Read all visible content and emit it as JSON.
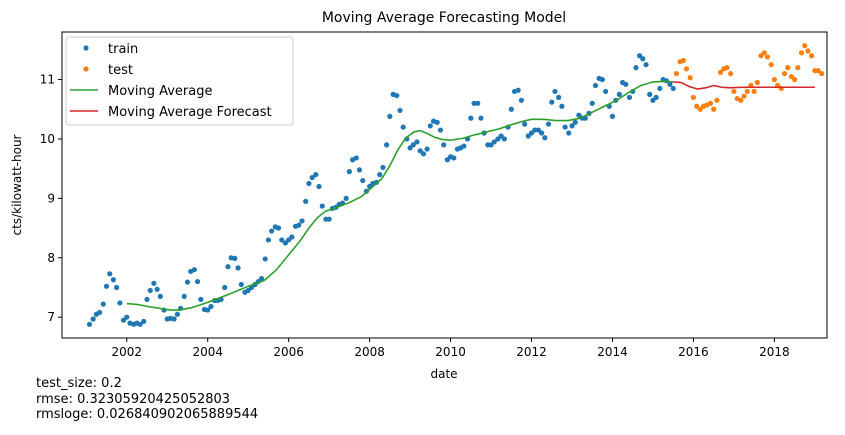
{
  "chart_data": {
    "type": "scatter",
    "title": "Moving Average Forecasting Model",
    "xlabel": "date",
    "ylabel": "cts/kilowatt-hour",
    "xlim": [
      2000.4,
      2019.3
    ],
    "ylim": [
      6.65,
      11.8
    ],
    "x_ticks": [
      "2002",
      "2004",
      "2006",
      "2008",
      "2010",
      "2012",
      "2014",
      "2016",
      "2018"
    ],
    "y_ticks": [
      "7",
      "8",
      "9",
      "10",
      "11"
    ],
    "grid": false,
    "legend_position": "top-left",
    "series": [
      {
        "name": "train",
        "kind": "points",
        "color": "#1f77b4",
        "points": [
          [
            2001.08,
            6.88
          ],
          [
            2001.17,
            6.97
          ],
          [
            2001.25,
            7.05
          ],
          [
            2001.33,
            7.08
          ],
          [
            2001.42,
            7.22
          ],
          [
            2001.5,
            7.52
          ],
          [
            2001.58,
            7.73
          ],
          [
            2001.67,
            7.63
          ],
          [
            2001.75,
            7.5
          ],
          [
            2001.83,
            7.24
          ],
          [
            2001.92,
            6.95
          ],
          [
            2002.0,
            7.0
          ],
          [
            2002.08,
            6.9
          ],
          [
            2002.17,
            6.88
          ],
          [
            2002.25,
            6.9
          ],
          [
            2002.33,
            6.88
          ],
          [
            2002.42,
            6.93
          ],
          [
            2002.5,
            7.3
          ],
          [
            2002.58,
            7.45
          ],
          [
            2002.67,
            7.57
          ],
          [
            2002.75,
            7.47
          ],
          [
            2002.83,
            7.35
          ],
          [
            2002.92,
            7.12
          ],
          [
            2003.0,
            6.97
          ],
          [
            2003.08,
            6.98
          ],
          [
            2003.17,
            6.97
          ],
          [
            2003.25,
            7.05
          ],
          [
            2003.33,
            7.15
          ],
          [
            2003.42,
            7.35
          ],
          [
            2003.5,
            7.59
          ],
          [
            2003.58,
            7.77
          ],
          [
            2003.67,
            7.8
          ],
          [
            2003.75,
            7.6
          ],
          [
            2003.83,
            7.3
          ],
          [
            2003.92,
            7.13
          ],
          [
            2004.0,
            7.12
          ],
          [
            2004.08,
            7.18
          ],
          [
            2004.17,
            7.28
          ],
          [
            2004.25,
            7.28
          ],
          [
            2004.33,
            7.3
          ],
          [
            2004.42,
            7.5
          ],
          [
            2004.5,
            7.85
          ],
          [
            2004.58,
            8.0
          ],
          [
            2004.67,
            7.99
          ],
          [
            2004.75,
            7.83
          ],
          [
            2004.83,
            7.55
          ],
          [
            2004.92,
            7.42
          ],
          [
            2005.0,
            7.45
          ],
          [
            2005.08,
            7.5
          ],
          [
            2005.17,
            7.55
          ],
          [
            2005.25,
            7.6
          ],
          [
            2005.33,
            7.65
          ],
          [
            2005.42,
            7.98
          ],
          [
            2005.5,
            8.3
          ],
          [
            2005.58,
            8.45
          ],
          [
            2005.67,
            8.52
          ],
          [
            2005.75,
            8.5
          ],
          [
            2005.83,
            8.3
          ],
          [
            2005.92,
            8.25
          ],
          [
            2006.0,
            8.3
          ],
          [
            2006.08,
            8.35
          ],
          [
            2006.17,
            8.53
          ],
          [
            2006.25,
            8.55
          ],
          [
            2006.33,
            8.62
          ],
          [
            2006.42,
            8.95
          ],
          [
            2006.5,
            9.25
          ],
          [
            2006.58,
            9.35
          ],
          [
            2006.67,
            9.4
          ],
          [
            2006.75,
            9.2
          ],
          [
            2006.83,
            8.87
          ],
          [
            2006.92,
            8.65
          ],
          [
            2007.0,
            8.65
          ],
          [
            2007.08,
            8.83
          ],
          [
            2007.17,
            8.85
          ],
          [
            2007.25,
            8.9
          ],
          [
            2007.33,
            8.92
          ],
          [
            2007.42,
            9.0
          ],
          [
            2007.5,
            9.45
          ],
          [
            2007.58,
            9.65
          ],
          [
            2007.67,
            9.68
          ],
          [
            2007.75,
            9.48
          ],
          [
            2007.83,
            9.3
          ],
          [
            2007.92,
            9.12
          ],
          [
            2008.0,
            9.2
          ],
          [
            2008.08,
            9.25
          ],
          [
            2008.17,
            9.27
          ],
          [
            2008.25,
            9.4
          ],
          [
            2008.33,
            9.52
          ],
          [
            2008.42,
            9.9
          ],
          [
            2008.5,
            10.38
          ],
          [
            2008.58,
            10.75
          ],
          [
            2008.67,
            10.73
          ],
          [
            2008.75,
            10.48
          ],
          [
            2008.83,
            10.2
          ],
          [
            2008.92,
            10.0
          ],
          [
            2009.0,
            9.85
          ],
          [
            2009.08,
            9.9
          ],
          [
            2009.17,
            9.95
          ],
          [
            2009.25,
            9.8
          ],
          [
            2009.33,
            9.75
          ],
          [
            2009.42,
            9.83
          ],
          [
            2009.5,
            10.22
          ],
          [
            2009.58,
            10.3
          ],
          [
            2009.67,
            10.28
          ],
          [
            2009.75,
            10.15
          ],
          [
            2009.83,
            9.9
          ],
          [
            2009.92,
            9.65
          ],
          [
            2010.0,
            9.7
          ],
          [
            2010.08,
            9.68
          ],
          [
            2010.17,
            9.83
          ],
          [
            2010.25,
            9.85
          ],
          [
            2010.33,
            9.88
          ],
          [
            2010.42,
            10.0
          ],
          [
            2010.5,
            10.35
          ],
          [
            2010.58,
            10.6
          ],
          [
            2010.67,
            10.6
          ],
          [
            2010.75,
            10.35
          ],
          [
            2010.83,
            10.1
          ],
          [
            2010.92,
            9.9
          ],
          [
            2011.0,
            9.9
          ],
          [
            2011.08,
            9.95
          ],
          [
            2011.17,
            10.0
          ],
          [
            2011.25,
            10.05
          ],
          [
            2011.33,
            10.0
          ],
          [
            2011.42,
            10.2
          ],
          [
            2011.5,
            10.5
          ],
          [
            2011.58,
            10.8
          ],
          [
            2011.67,
            10.82
          ],
          [
            2011.75,
            10.65
          ],
          [
            2011.83,
            10.25
          ],
          [
            2011.92,
            10.05
          ],
          [
            2012.0,
            10.1
          ],
          [
            2012.08,
            10.15
          ],
          [
            2012.17,
            10.15
          ],
          [
            2012.25,
            10.1
          ],
          [
            2012.33,
            10.02
          ],
          [
            2012.42,
            10.25
          ],
          [
            2012.5,
            10.62
          ],
          [
            2012.58,
            10.8
          ],
          [
            2012.67,
            10.7
          ],
          [
            2012.75,
            10.55
          ],
          [
            2012.83,
            10.2
          ],
          [
            2012.92,
            10.1
          ],
          [
            2013.0,
            10.22
          ],
          [
            2013.08,
            10.28
          ],
          [
            2013.17,
            10.4
          ],
          [
            2013.25,
            10.35
          ],
          [
            2013.33,
            10.35
          ],
          [
            2013.42,
            10.43
          ],
          [
            2013.5,
            10.6
          ],
          [
            2013.58,
            10.9
          ],
          [
            2013.67,
            11.02
          ],
          [
            2013.75,
            11.0
          ],
          [
            2013.83,
            10.8
          ],
          [
            2013.92,
            10.55
          ],
          [
            2014.0,
            10.38
          ],
          [
            2014.08,
            10.65
          ],
          [
            2014.17,
            10.75
          ],
          [
            2014.25,
            10.95
          ],
          [
            2014.33,
            10.92
          ],
          [
            2014.42,
            10.7
          ],
          [
            2014.5,
            10.8
          ],
          [
            2014.58,
            11.2
          ],
          [
            2014.67,
            11.4
          ],
          [
            2014.75,
            11.35
          ],
          [
            2014.83,
            11.25
          ],
          [
            2014.92,
            10.75
          ],
          [
            2015.0,
            10.65
          ],
          [
            2015.08,
            10.7
          ],
          [
            2015.17,
            10.85
          ],
          [
            2015.25,
            11.0
          ],
          [
            2015.33,
            10.98
          ],
          [
            2015.42,
            10.92
          ],
          [
            2015.5,
            10.85
          ]
        ]
      },
      {
        "name": "test",
        "kind": "points",
        "color": "#ff7f0e",
        "points": [
          [
            2015.58,
            11.1
          ],
          [
            2015.67,
            11.3
          ],
          [
            2015.75,
            11.32
          ],
          [
            2015.83,
            11.18
          ],
          [
            2015.92,
            11.03
          ],
          [
            2016.0,
            10.7
          ],
          [
            2016.08,
            10.55
          ],
          [
            2016.17,
            10.5
          ],
          [
            2016.25,
            10.55
          ],
          [
            2016.33,
            10.57
          ],
          [
            2016.42,
            10.6
          ],
          [
            2016.5,
            10.5
          ],
          [
            2016.58,
            10.65
          ],
          [
            2016.67,
            11.12
          ],
          [
            2016.75,
            11.18
          ],
          [
            2016.83,
            11.2
          ],
          [
            2016.92,
            11.1
          ],
          [
            2017.0,
            10.8
          ],
          [
            2017.08,
            10.68
          ],
          [
            2017.17,
            10.65
          ],
          [
            2017.25,
            10.72
          ],
          [
            2017.33,
            10.8
          ],
          [
            2017.42,
            10.9
          ],
          [
            2017.5,
            10.8
          ],
          [
            2017.58,
            10.95
          ],
          [
            2017.67,
            11.4
          ],
          [
            2017.75,
            11.45
          ],
          [
            2017.83,
            11.38
          ],
          [
            2017.92,
            11.25
          ],
          [
            2018.0,
            11.0
          ],
          [
            2018.08,
            10.9
          ],
          [
            2018.17,
            10.85
          ],
          [
            2018.25,
            11.1
          ],
          [
            2018.33,
            11.2
          ],
          [
            2018.42,
            11.05
          ],
          [
            2018.5,
            11.0
          ],
          [
            2018.58,
            11.2
          ],
          [
            2018.67,
            11.45
          ],
          [
            2018.75,
            11.57
          ],
          [
            2018.83,
            11.48
          ],
          [
            2018.92,
            11.4
          ],
          [
            2019.0,
            11.15
          ],
          [
            2019.08,
            11.15
          ],
          [
            2019.17,
            11.1
          ]
        ]
      },
      {
        "name": "Moving Average",
        "kind": "line",
        "color": "#2ca02c",
        "points": [
          [
            2002.0,
            7.23
          ],
          [
            2002.3,
            7.21
          ],
          [
            2002.6,
            7.17
          ],
          [
            2002.9,
            7.14
          ],
          [
            2003.1,
            7.12
          ],
          [
            2003.3,
            7.12
          ],
          [
            2003.6,
            7.16
          ],
          [
            2004.0,
            7.25
          ],
          [
            2004.5,
            7.38
          ],
          [
            2005.0,
            7.52
          ],
          [
            2005.4,
            7.62
          ],
          [
            2005.7,
            7.8
          ],
          [
            2006.0,
            8.05
          ],
          [
            2006.3,
            8.3
          ],
          [
            2006.5,
            8.5
          ],
          [
            2006.7,
            8.67
          ],
          [
            2006.9,
            8.78
          ],
          [
            2007.2,
            8.85
          ],
          [
            2007.5,
            8.93
          ],
          [
            2007.8,
            9.03
          ],
          [
            2008.0,
            9.15
          ],
          [
            2008.3,
            9.33
          ],
          [
            2008.5,
            9.55
          ],
          [
            2008.7,
            9.82
          ],
          [
            2008.9,
            10.02
          ],
          [
            2009.1,
            10.12
          ],
          [
            2009.25,
            10.14
          ],
          [
            2009.4,
            10.1
          ],
          [
            2009.6,
            10.03
          ],
          [
            2009.8,
            9.99
          ],
          [
            2010.0,
            9.98
          ],
          [
            2010.3,
            10.01
          ],
          [
            2010.6,
            10.07
          ],
          [
            2010.9,
            10.12
          ],
          [
            2011.2,
            10.17
          ],
          [
            2011.5,
            10.24
          ],
          [
            2011.8,
            10.3
          ],
          [
            2012.0,
            10.33
          ],
          [
            2012.3,
            10.33
          ],
          [
            2012.6,
            10.31
          ],
          [
            2012.9,
            10.31
          ],
          [
            2013.2,
            10.35
          ],
          [
            2013.5,
            10.45
          ],
          [
            2013.8,
            10.55
          ],
          [
            2014.1,
            10.65
          ],
          [
            2014.4,
            10.78
          ],
          [
            2014.7,
            10.9
          ],
          [
            2015.0,
            10.96
          ],
          [
            2015.3,
            10.97
          ],
          [
            2015.5,
            10.96
          ]
        ]
      },
      {
        "name": "Moving Average Forecast",
        "kind": "line",
        "color": "#d62728",
        "points": [
          [
            2015.5,
            10.96
          ],
          [
            2015.7,
            10.95
          ],
          [
            2015.9,
            10.88
          ],
          [
            2016.1,
            10.84
          ],
          [
            2016.3,
            10.86
          ],
          [
            2016.5,
            10.9
          ],
          [
            2016.7,
            10.87
          ],
          [
            2016.9,
            10.86
          ],
          [
            2017.2,
            10.87
          ],
          [
            2017.5,
            10.87
          ],
          [
            2018.0,
            10.87
          ],
          [
            2018.5,
            10.87
          ],
          [
            2019.0,
            10.87
          ]
        ]
      }
    ]
  },
  "stats": {
    "test_size": "test_size: 0.2",
    "rmse": "rmse: 0.32305920425052803",
    "rmsloge": "rmsloge: 0.026840902065889544"
  }
}
